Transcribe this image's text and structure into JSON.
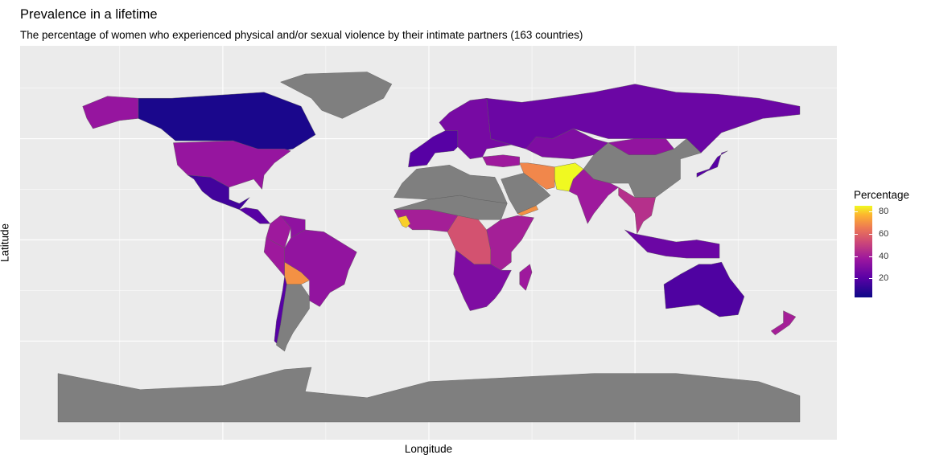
{
  "title": "Prevalence in a lifetime",
  "subtitle": "The percentage of women who experienced physical and/or sexual violence by their intimate partners (163 countries)",
  "xlabel": "Longitude",
  "ylabel": "Latitude",
  "legend": {
    "title": "Percentage",
    "ticks": [
      {
        "label": "20",
        "value": 20
      },
      {
        "label": "40",
        "value": 40
      },
      {
        "label": "60",
        "value": 60
      },
      {
        "label": "80",
        "value": 80
      }
    ],
    "range": [
      3,
      85
    ],
    "palette": "plasma"
  },
  "map": {
    "projection": "equirectangular",
    "xlim": [
      -180,
      180
    ],
    "ylim": [
      -90,
      84
    ],
    "grid": true,
    "no_data_color": "#7f7f7f",
    "regions": [
      {
        "name": "Canada",
        "value": 6
      },
      {
        "name": "United States",
        "value": 36
      },
      {
        "name": "Alaska",
        "value": 36
      },
      {
        "name": "Mexico",
        "value": 15
      },
      {
        "name": "Central America",
        "value": 20
      },
      {
        "name": "Colombia",
        "value": 38
      },
      {
        "name": "Venezuela",
        "value": 34
      },
      {
        "name": "Brazil",
        "value": 35
      },
      {
        "name": "Peru",
        "value": 38
      },
      {
        "name": "Bolivia",
        "value": 70
      },
      {
        "name": "Chile",
        "value": 20
      },
      {
        "name": "Argentina",
        "value": null
      },
      {
        "name": "Greenland",
        "value": null
      },
      {
        "name": "Russia",
        "value": 25
      },
      {
        "name": "Kazakhstan",
        "value": 30
      },
      {
        "name": "Mongolia",
        "value": 35
      },
      {
        "name": "China",
        "value": null
      },
      {
        "name": "India",
        "value": 38
      },
      {
        "name": "Iran",
        "value": 68
      },
      {
        "name": "Afghanistan",
        "value": 85
      },
      {
        "name": "Arabian Peninsula",
        "value": null
      },
      {
        "name": "Yemen",
        "value": 70
      },
      {
        "name": "Southeast Asia",
        "value": 45
      },
      {
        "name": "Indonesia",
        "value": 25
      },
      {
        "name": "Australia",
        "value": 18
      },
      {
        "name": "New Zealand",
        "value": 40
      },
      {
        "name": "Japan",
        "value": 20
      },
      {
        "name": "Western Europe",
        "value": 20
      },
      {
        "name": "Eastern Europe",
        "value": 28
      },
      {
        "name": "Turkey",
        "value": 38
      },
      {
        "name": "North Africa",
        "value": null
      },
      {
        "name": "Sahel",
        "value": null
      },
      {
        "name": "West Africa",
        "value": 40
      },
      {
        "name": "Sierra Leone",
        "value": 80
      },
      {
        "name": "Central Africa",
        "value": 55
      },
      {
        "name": "East Africa",
        "value": 40
      },
      {
        "name": "Southern Africa",
        "value": 30
      },
      {
        "name": "Madagascar",
        "value": 38
      },
      {
        "name": "Antarctica",
        "value": null
      }
    ]
  }
}
